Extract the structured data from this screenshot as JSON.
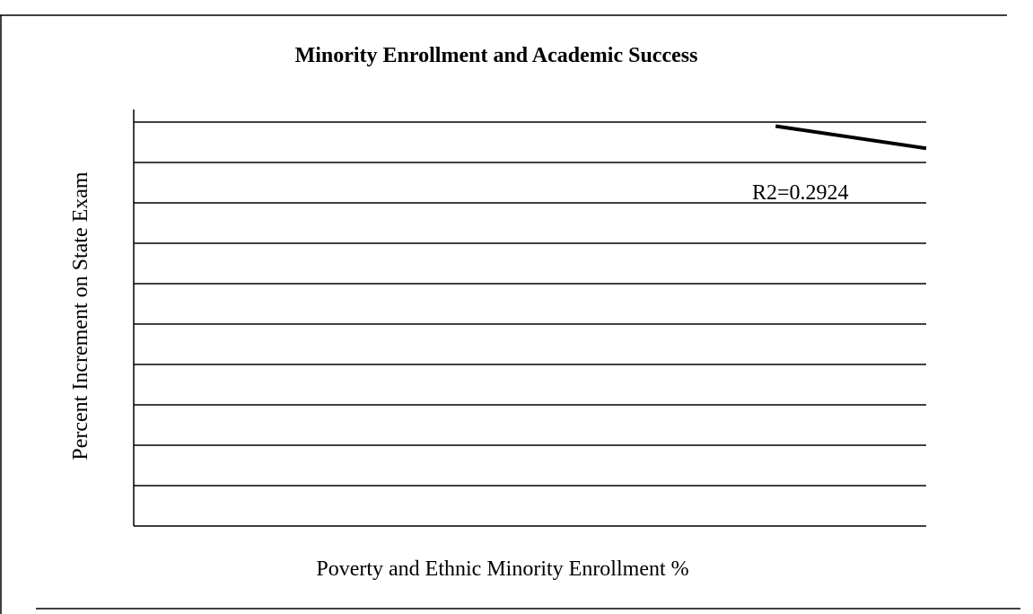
{
  "chart_data": {
    "type": "line",
    "title": "Minority Enrollment and Academic Success",
    "xlabel": "Poverty and Ethnic Minority Enrollment %",
    "ylabel": "Percent Increment on State Exam",
    "annotation": "R2=0.2924",
    "grid": true,
    "gridlines": 10,
    "series": [
      {
        "x": [
          0.81,
          1.0
        ],
        "y": [
          9.9,
          9.35
        ]
      }
    ],
    "xlim": [
      0,
      1
    ],
    "ylim": [
      0,
      10
    ]
  }
}
